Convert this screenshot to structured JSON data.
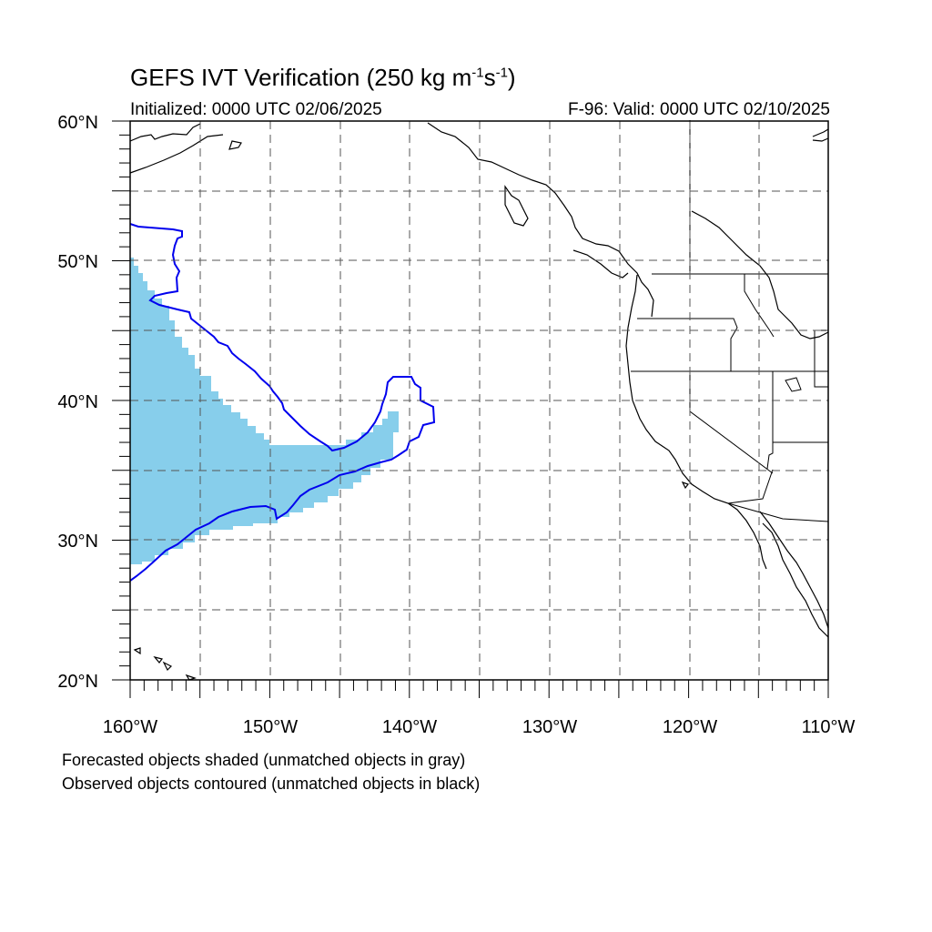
{
  "header": {
    "title_prefix": "GEFS IVT Verification (250 kg m",
    "title_exp1": "-1",
    "title_mid": "s",
    "title_exp2": "-1",
    "title_suffix": ")",
    "initialized": "Initialized: 0000 UTC 02/06/2025",
    "valid": "F-96: Valid: 0000 UTC 02/10/2025"
  },
  "axes": {
    "lat_labels": [
      "60°N",
      "50°N",
      "40°N",
      "30°N",
      "20°N"
    ],
    "lon_labels": [
      "160°W",
      "150°W",
      "140°W",
      "130°W",
      "120°W",
      "110°W"
    ],
    "lat_range": [
      20,
      60
    ],
    "lon_range": [
      -160,
      -110
    ],
    "gridlines": "dashed, every 5 degrees"
  },
  "legend": {
    "forecast_note": "Forecasted objects shaded (unmatched objects in gray)",
    "observed_note": "Observed objects contoured (unmatched objects in black)"
  },
  "colors": {
    "forecast_fill": "#87ceeb",
    "observed_contour": "#0000ee",
    "coastline": "#000000",
    "grid": "#555555"
  }
}
